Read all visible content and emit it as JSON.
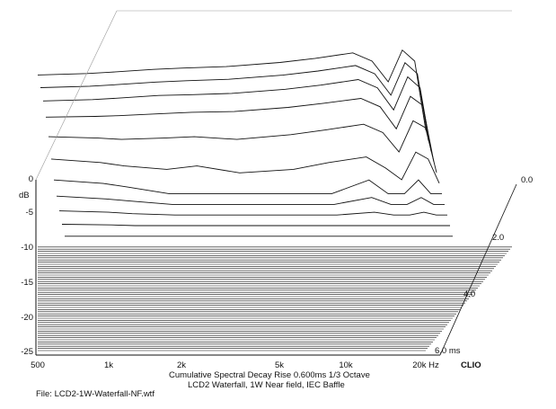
{
  "chart_data": {
    "type": "waterfall",
    "brand": "CLIO",
    "ylabel": "dB",
    "y_ticks": [
      "0",
      "-5",
      "-10",
      "-15",
      "-20",
      "-25"
    ],
    "y_tick_values": [
      0,
      -5,
      -10,
      -15,
      -20,
      -25
    ],
    "x_ticks": [
      "500",
      "1k",
      "2k",
      "5k",
      "10k",
      "20k Hz"
    ],
    "x_tick_values": [
      500,
      1000,
      2000,
      5000,
      10000,
      20000
    ],
    "time_ticks": [
      "0.0",
      "2.0",
      "4.0",
      "6.0 ms"
    ],
    "time_tick_values": [
      0,
      2,
      4,
      6
    ],
    "caption": {
      "line1": "Cumulative Spectral Decay    Rise 0.600ms   1/3 Octave",
      "line2": "LCD2 Waterfall, 1W        Near field, IEC Baffle"
    },
    "file": "File: LCD2-1W-Waterfall-NF.wtf",
    "time_slices_ms": [
      0.0,
      0.6,
      1.2,
      1.8,
      2.4,
      3.0,
      3.6,
      4.2,
      4.8,
      5.4,
      6.0
    ],
    "spectrum_frequencies_hz": [
      500,
      800,
      1000,
      1500,
      2000,
      3000,
      5000,
      7000,
      10000,
      12000,
      14000,
      16000,
      18000,
      20000
    ],
    "decay_slices_db": [
      [
        -2.0,
        -1.8,
        -1.6,
        -1.2,
        -1.0,
        -0.8,
        -0.2,
        0.4,
        1.2,
        0.0,
        -3.0,
        1.6,
        0.0,
        -10.0
      ],
      [
        -2.3,
        -2.1,
        -1.9,
        -1.5,
        -1.3,
        -1.1,
        -0.5,
        0.1,
        0.9,
        -0.3,
        -3.4,
        1.3,
        -0.3,
        -10.0
      ],
      [
        -2.7,
        -2.5,
        -2.3,
        -1.9,
        -1.8,
        -1.6,
        -1.0,
        -0.4,
        0.4,
        -0.8,
        -4.0,
        0.8,
        -0.8,
        -10.0
      ],
      [
        -3.5,
        -3.4,
        -3.3,
        -3.0,
        -2.8,
        -2.7,
        -2.1,
        -1.5,
        -0.8,
        -2.0,
        -5.2,
        -0.5,
        -1.8,
        -10.0
      ],
      [
        -4.8,
        -5.0,
        -5.2,
        -5.0,
        -4.8,
        -5.2,
        -4.5,
        -3.8,
        -3.0,
        -4.2,
        -7.0,
        -2.5,
        -3.5,
        -10.0
      ],
      [
        -6.5,
        -7.0,
        -7.5,
        -8.0,
        -7.5,
        -8.5,
        -8.0,
        -7.0,
        -6.2,
        -7.8,
        -9.5,
        -5.5,
        -6.5,
        -10.0
      ],
      [
        -8.0,
        -8.5,
        -9.0,
        -10.0,
        -10.0,
        -10.0,
        -10.0,
        -10.0,
        -8.0,
        -10.0,
        -10.0,
        -8.0,
        -10.0,
        -10.0
      ],
      [
        -8.8,
        -9.2,
        -9.5,
        -10.0,
        -10.0,
        -10.0,
        -10.0,
        -10.0,
        -9.0,
        -10.0,
        -10.0,
        -9.0,
        -10.0,
        -10.0
      ],
      [
        -9.4,
        -9.6,
        -9.8,
        -10.0,
        -10.0,
        -10.0,
        -10.0,
        -10.0,
        -9.6,
        -10.0,
        -10.0,
        -9.6,
        -10.0,
        -10.0
      ],
      [
        -9.8,
        -9.9,
        -10.0,
        -10.0,
        -10.0,
        -10.0,
        -10.0,
        -10.0,
        -10.0,
        -10.0,
        -10.0,
        -10.0,
        -10.0,
        -10.0
      ],
      [
        -10.0,
        -10.0,
        -10.0,
        -10.0,
        -10.0,
        -10.0,
        -10.0,
        -10.0,
        -10.0,
        -10.0,
        -10.0,
        -10.0,
        -10.0,
        -10.0
      ]
    ],
    "xscale": "log",
    "xlim": [
      500,
      20000
    ],
    "ylim": [
      -25,
      0
    ],
    "tlim": [
      0,
      6
    ],
    "grid": false,
    "colors": {
      "lines": "#111111",
      "background": "#ffffff"
    }
  }
}
